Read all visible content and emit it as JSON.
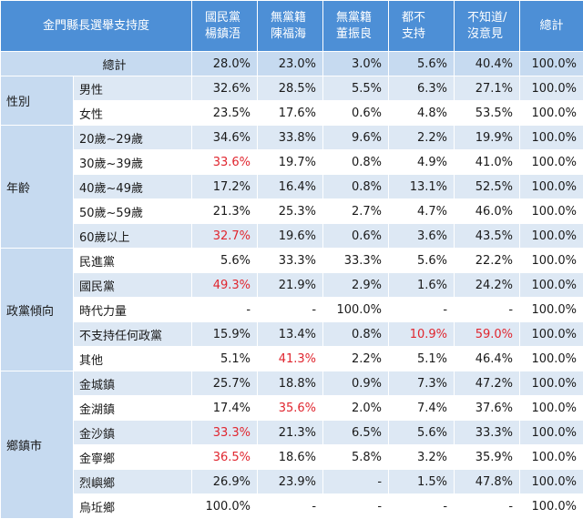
{
  "table": {
    "corner_title": "金門縣長選舉支持度",
    "headers": [
      {
        "line1": "國民黨",
        "line2": "楊鎮浯"
      },
      {
        "line1": "無黨籍",
        "line2": "陳福海"
      },
      {
        "line1": "無黨籍",
        "line2": "董振良"
      },
      {
        "line1": "都不",
        "line2": "支持"
      },
      {
        "line1": "不知道/",
        "line2": "沒意見"
      },
      {
        "line1": "總計",
        "line2": ""
      }
    ],
    "total_row": {
      "label": "總計",
      "values": [
        "28.0%",
        "23.0%",
        "3.0%",
        "5.6%",
        "40.4%",
        "100.0%"
      ]
    },
    "groups": [
      {
        "label": "性別",
        "rows": [
          {
            "label": "男性",
            "values": [
              "32.6%",
              "28.5%",
              "5.5%",
              "6.3%",
              "27.1%",
              "100.0%"
            ]
          },
          {
            "label": "女性",
            "values": [
              "23.5%",
              "17.6%",
              "0.6%",
              "4.8%",
              "53.5%",
              "100.0%"
            ]
          }
        ]
      },
      {
        "label": "年齡",
        "rows": [
          {
            "label": "20歲~29歲",
            "values": [
              "34.6%",
              "33.8%",
              "9.6%",
              "2.2%",
              "19.9%",
              "100.0%"
            ]
          },
          {
            "label": "30歲~39歲",
            "values": [
              "33.6%",
              "19.7%",
              "0.8%",
              "4.9%",
              "41.0%",
              "100.0%"
            ]
          },
          {
            "label": "40歲~49歲",
            "values": [
              "17.2%",
              "16.4%",
              "0.8%",
              "13.1%",
              "52.5%",
              "100.0%"
            ]
          },
          {
            "label": "50歲~59歲",
            "values": [
              "21.3%",
              "25.3%",
              "2.7%",
              "4.7%",
              "46.0%",
              "100.0%"
            ]
          },
          {
            "label": "60歲以上",
            "values": [
              "32.7%",
              "19.6%",
              "0.6%",
              "3.6%",
              "43.5%",
              "100.0%"
            ]
          }
        ]
      },
      {
        "label": "政黨傾向",
        "rows": [
          {
            "label": "民進黨",
            "values": [
              "5.6%",
              "33.3%",
              "33.3%",
              "5.6%",
              "22.2%",
              "100.0%"
            ]
          },
          {
            "label": "國民黨",
            "values": [
              "49.3%",
              "21.9%",
              "2.9%",
              "1.6%",
              "24.2%",
              "100.0%"
            ]
          },
          {
            "label": "時代力量",
            "values": [
              "-",
              "-",
              "100.0%",
              "-",
              "-",
              "100.0%"
            ]
          },
          {
            "label": "不支持任何政黨",
            "values": [
              "15.9%",
              "13.4%",
              "0.8%",
              "10.9%",
              "59.0%",
              "100.0%"
            ]
          },
          {
            "label": "其他",
            "values": [
              "5.1%",
              "41.3%",
              "2.2%",
              "5.1%",
              "46.4%",
              "100.0%"
            ]
          }
        ]
      },
      {
        "label": "鄉鎮市",
        "rows": [
          {
            "label": "金城鎮",
            "values": [
              "25.7%",
              "18.8%",
              "0.9%",
              "7.3%",
              "47.2%",
              "100.0%"
            ]
          },
          {
            "label": "金湖鎮",
            "values": [
              "17.4%",
              "35.6%",
              "2.0%",
              "7.4%",
              "37.6%",
              "100.0%"
            ]
          },
          {
            "label": "金沙鎮",
            "values": [
              "33.3%",
              "21.3%",
              "6.5%",
              "5.6%",
              "33.3%",
              "100.0%"
            ]
          },
          {
            "label": "金寧鄉",
            "values": [
              "36.5%",
              "18.6%",
              "5.8%",
              "3.2%",
              "35.9%",
              "100.0%"
            ]
          },
          {
            "label": "烈嶼鄉",
            "values": [
              "26.9%",
              "23.9%",
              "-",
              "1.5%",
              "47.8%",
              "100.0%"
            ]
          },
          {
            "label": "烏坵鄉",
            "values": [
              "100.0%",
              "-",
              "-",
              "-",
              "-",
              "100.0%"
            ]
          }
        ]
      }
    ],
    "highlight_color": "#e0262f",
    "header_bg": "#4d8fd6",
    "label_bg": "#c6daf0",
    "row_bg_light": "#dde8f4"
  }
}
